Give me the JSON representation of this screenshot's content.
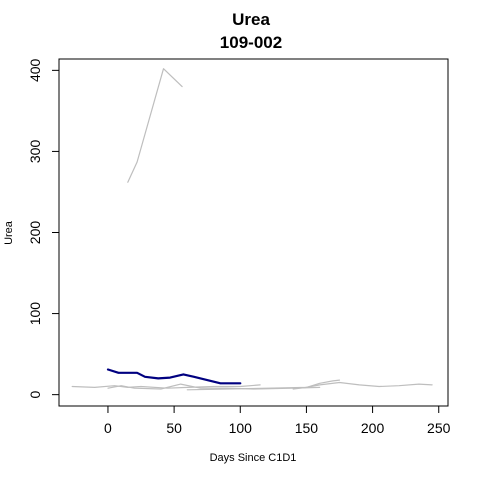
{
  "chart_data": {
    "type": "line",
    "title": "Urea",
    "subtitle": "109-002",
    "xlabel": "Days Since C1D1",
    "ylabel": "Urea",
    "xlim": [
      -37,
      257
    ],
    "ylim": [
      -14,
      414
    ],
    "x_ticks": [
      0,
      50,
      100,
      150,
      200,
      250
    ],
    "y_ticks": [
      0,
      100,
      200,
      300,
      400
    ],
    "grid": false,
    "legend": "none",
    "colors": {
      "highlight": "#000080",
      "background": "#bebebe"
    },
    "series": [
      {
        "highlight": false,
        "x": [
          15,
          22,
          42,
          56
        ],
        "y": [
          262,
          287,
          402,
          380
        ]
      },
      {
        "highlight": false,
        "x": [
          -27,
          -10,
          5,
          15,
          25,
          45,
          60,
          80,
          100,
          115
        ],
        "y": [
          10,
          9,
          11,
          9,
          10,
          8,
          9,
          10,
          10,
          12
        ]
      },
      {
        "highlight": false,
        "x": [
          0,
          10,
          20,
          40,
          55,
          70,
          90,
          110,
          140,
          160
        ],
        "y": [
          8,
          11,
          8,
          7,
          13,
          8,
          8,
          7,
          8,
          9
        ]
      },
      {
        "highlight": false,
        "x": [
          60,
          90,
          120,
          150,
          160,
          175,
          190,
          205,
          220,
          235,
          245
        ],
        "y": [
          6,
          7,
          8,
          9,
          12,
          15,
          12,
          10,
          11,
          13,
          12
        ]
      },
      {
        "highlight": false,
        "x": [
          140,
          150,
          160,
          170,
          175
        ],
        "y": [
          7,
          9,
          14,
          17,
          18
        ]
      },
      {
        "highlight": true,
        "x": [
          0,
          8,
          22,
          28,
          38,
          47,
          57,
          65,
          75,
          85,
          100
        ],
        "y": [
          31,
          27,
          27,
          22,
          20,
          21,
          25,
          22,
          18,
          14,
          14
        ]
      }
    ]
  }
}
